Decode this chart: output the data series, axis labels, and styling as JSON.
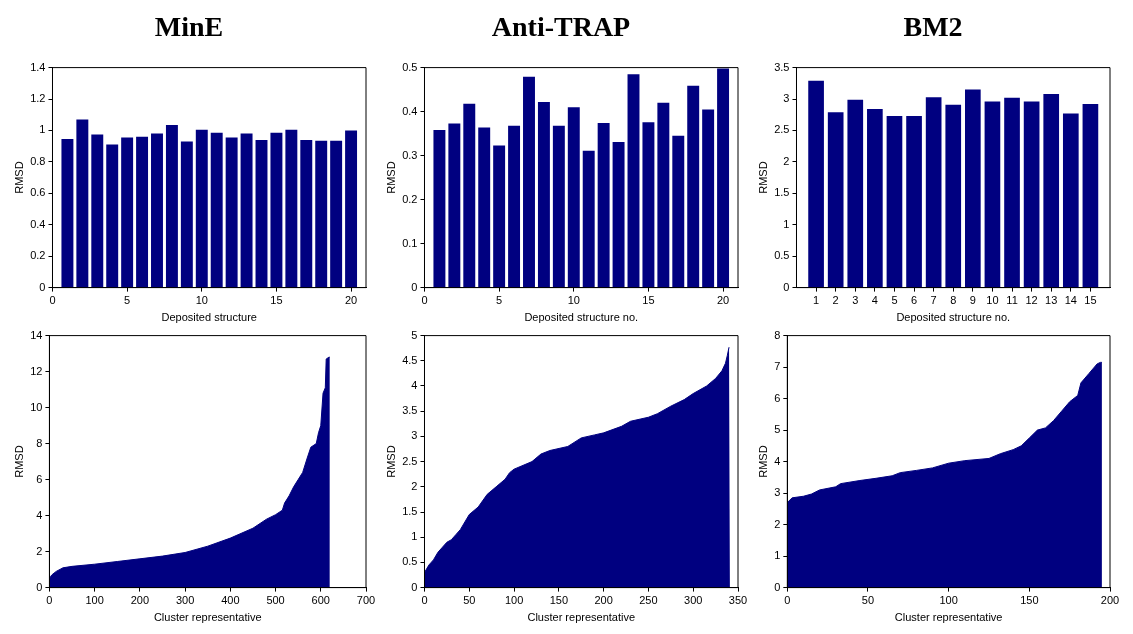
{
  "chart_data": [
    {
      "type": "bar",
      "title": "MinE",
      "xlabel": "Deposited structure",
      "ylabel": "RMSD",
      "color": "#000080",
      "x": [
        1,
        2,
        3,
        4,
        5,
        6,
        7,
        8,
        9,
        10,
        11,
        12,
        13,
        14,
        15,
        16,
        17,
        18,
        19,
        20
      ],
      "values": [
        0.945,
        1.07,
        0.975,
        0.91,
        0.955,
        0.96,
        0.98,
        1.035,
        0.93,
        1.005,
        0.985,
        0.955,
        0.98,
        0.94,
        0.985,
        1.005,
        0.94,
        0.935,
        0.935,
        1.0
      ],
      "xlim": [
        0,
        21
      ],
      "xticks": [
        0,
        5,
        10,
        15,
        20
      ],
      "ylim": [
        0,
        1.4
      ],
      "yticks": [
        0,
        0.2,
        0.4,
        0.6,
        0.8,
        1,
        1.2,
        1.4
      ]
    },
    {
      "type": "bar",
      "title": "Anti-TRAP",
      "xlabel": "Deposited structure no.",
      "ylabel": "RMSD",
      "color": "#000080",
      "x": [
        1,
        2,
        3,
        4,
        5,
        6,
        7,
        8,
        9,
        10,
        11,
        12,
        13,
        14,
        15,
        16,
        17,
        18,
        19,
        20
      ],
      "values": [
        0.358,
        0.373,
        0.418,
        0.364,
        0.323,
        0.368,
        0.479,
        0.422,
        0.368,
        0.41,
        0.311,
        0.374,
        0.331,
        0.485,
        0.376,
        0.42,
        0.345,
        0.459,
        0.405,
        0.498
      ],
      "xlim": [
        0,
        21
      ],
      "xticks": [
        0,
        5,
        10,
        15,
        20
      ],
      "ylim": [
        0,
        0.5
      ],
      "yticks": [
        0,
        0.1,
        0.2,
        0.3,
        0.4,
        0.5
      ]
    },
    {
      "type": "bar",
      "title": "BM2",
      "xlabel": "Deposited structure no.",
      "ylabel": "RMSD",
      "color": "#000080",
      "x": [
        1,
        2,
        3,
        4,
        5,
        6,
        7,
        8,
        9,
        10,
        11,
        12,
        13,
        14,
        15
      ],
      "xlim": [
        0,
        16
      ],
      "xticks": [
        1,
        2,
        3,
        4,
        5,
        6,
        7,
        8,
        9,
        10,
        11,
        12,
        13,
        14,
        15
      ],
      "values": [
        3.29,
        2.79,
        2.99,
        2.84,
        2.73,
        2.73,
        3.03,
        2.91,
        3.15,
        2.96,
        3.02,
        2.96,
        3.08,
        2.77,
        2.92
      ],
      "ylim": [
        0,
        3.5
      ],
      "yticks": [
        0,
        0.5,
        1,
        1.5,
        2,
        2.5,
        3,
        3.5
      ]
    },
    {
      "type": "area",
      "xlabel": "Cluster representative",
      "ylabel": "RMSD",
      "color": "#000080",
      "x": [
        0,
        5,
        15,
        30,
        50,
        100,
        150,
        200,
        250,
        300,
        350,
        400,
        450,
        480,
        500,
        515,
        520,
        530,
        540,
        550,
        560,
        570,
        578,
        590,
        595,
        600,
        605,
        610,
        612,
        618,
        620
      ],
      "values": [
        0.5,
        0.7,
        0.9,
        1.1,
        1.18,
        1.3,
        1.45,
        1.6,
        1.75,
        1.95,
        2.3,
        2.75,
        3.3,
        3.8,
        4.05,
        4.3,
        4.7,
        5.1,
        5.6,
        6.0,
        6.4,
        7.2,
        7.8,
        8.0,
        8.6,
        9.0,
        10.8,
        11.1,
        12.7,
        12.8,
        12.8
      ],
      "xlim": [
        0,
        700
      ],
      "xticks": [
        0,
        100,
        200,
        300,
        400,
        500,
        600,
        700
      ],
      "ylim": [
        0,
        14
      ],
      "yticks": [
        0,
        2,
        4,
        6,
        8,
        10,
        12,
        14
      ]
    },
    {
      "type": "area",
      "xlabel": "Cluster representative",
      "ylabel": "RMSD",
      "color": "#000080",
      "x": [
        0,
        5,
        10,
        15,
        20,
        25,
        30,
        35,
        40,
        50,
        60,
        70,
        80,
        90,
        95,
        100,
        120,
        130,
        140,
        160,
        175,
        190,
        200,
        220,
        230,
        250,
        260,
        275,
        290,
        300,
        315,
        325,
        332,
        336,
        338,
        340,
        341
      ],
      "values": [
        0.3,
        0.45,
        0.55,
        0.7,
        0.8,
        0.9,
        0.95,
        1.05,
        1.15,
        1.45,
        1.6,
        1.85,
        2.0,
        2.15,
        2.28,
        2.35,
        2.5,
        2.65,
        2.72,
        2.8,
        2.97,
        3.03,
        3.07,
        3.2,
        3.3,
        3.38,
        3.45,
        3.6,
        3.73,
        3.85,
        4.0,
        4.15,
        4.3,
        4.45,
        4.6,
        4.77,
        4.77
      ],
      "xlim": [
        0,
        350
      ],
      "xticks": [
        0,
        50,
        100,
        150,
        200,
        250,
        300,
        350
      ],
      "ylim": [
        0,
        5
      ],
      "yticks": [
        0,
        0.5,
        1,
        1.5,
        2,
        2.5,
        3,
        3.5,
        4,
        4.5,
        5
      ]
    },
    {
      "type": "area",
      "xlabel": "Cluster representative",
      "ylabel": "RMSD",
      "color": "#000080",
      "x": [
        0,
        3,
        10,
        15,
        20,
        30,
        33,
        45,
        55,
        65,
        70,
        80,
        90,
        100,
        110,
        125,
        132,
        140,
        145,
        150,
        155,
        160,
        165,
        170,
        175,
        180,
        182,
        187,
        192,
        194,
        195
      ],
      "values": [
        2.7,
        2.85,
        2.9,
        2.97,
        3.1,
        3.2,
        3.3,
        3.4,
        3.47,
        3.55,
        3.65,
        3.72,
        3.8,
        3.95,
        4.03,
        4.1,
        4.25,
        4.38,
        4.5,
        4.75,
        5.0,
        5.07,
        5.3,
        5.6,
        5.9,
        6.1,
        6.5,
        6.8,
        7.1,
        7.15,
        7.15
      ],
      "xlim": [
        0,
        200
      ],
      "xticks": [
        0,
        50,
        100,
        150,
        200
      ],
      "ylim": [
        0,
        8
      ],
      "yticks": [
        0,
        1,
        2,
        3,
        4,
        5,
        6,
        7,
        8
      ]
    }
  ]
}
